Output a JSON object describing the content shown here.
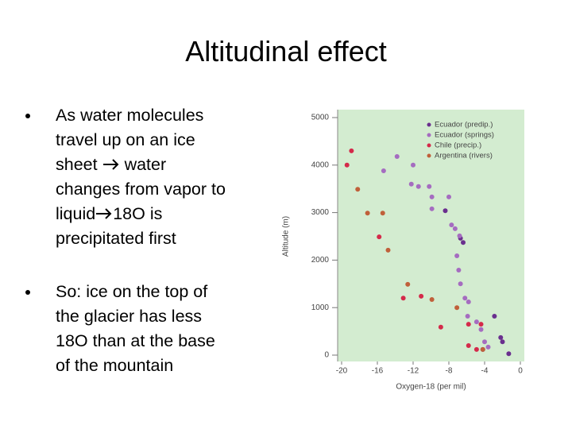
{
  "title": "Altitudinal effect",
  "bullets": [
    [
      "As water molecules",
      "travel up on an ice",
      "sheet",
      "water",
      "changes from vapor to",
      "liquid",
      "18O is",
      "precipitated first"
    ],
    [
      "So: ice on the top of",
      "the glacier has less",
      "18O than at the base",
      "of the mountain"
    ]
  ],
  "chart_data": {
    "type": "scatter",
    "xlabel": "Oxygen-18 (per mil)",
    "ylabel": "Altitude (m)",
    "xlim": [
      -20,
      0
    ],
    "xticks": [
      -20,
      -16,
      -12,
      -8,
      -4,
      0
    ],
    "ylim": [
      0,
      5000
    ],
    "yticks": [
      0,
      1000,
      2000,
      3000,
      4000,
      5000
    ],
    "legend": "top-right",
    "background": "#d3ecd0",
    "series": [
      {
        "name": "Ecuador (predip.)",
        "color": "#6a2f8e",
        "x": [
          -8.4,
          -6.4,
          -6.7,
          -2.9,
          -2.2,
          -2.0,
          -1.3,
          -4.2
        ],
        "values": [
          3040,
          2370,
          2460,
          820,
          370,
          280,
          30,
          120
        ]
      },
      {
        "name": "Ecuador (springs)",
        "color": "#a56cc0",
        "x": [
          -15.3,
          -13.8,
          -12.0,
          -12.2,
          -11.4,
          -10.2,
          -9.9,
          -8.0,
          -9.9,
          -7.7,
          -7.3,
          -6.8,
          -7.1,
          -6.9,
          -6.7,
          -6.2,
          -5.8,
          -5.9,
          -4.9,
          -4.4,
          -4.0,
          -3.6
        ],
        "values": [
          3880,
          4180,
          4000,
          3600,
          3550,
          3550,
          3330,
          3330,
          3080,
          2740,
          2660,
          2510,
          2090,
          1790,
          1500,
          1200,
          1120,
          820,
          700,
          540,
          280,
          170
        ]
      },
      {
        "name": "Chile (precip.)",
        "color": "#d42a4a",
        "x": [
          -18.9,
          -19.4,
          -15.8,
          -13.1,
          -11.1,
          -8.9,
          -5.8,
          -5.8,
          -4.4,
          -4.9
        ],
        "values": [
          4300,
          4000,
          2490,
          1200,
          1240,
          590,
          650,
          200,
          650,
          120
        ]
      },
      {
        "name": "Argentina (rivers)",
        "color": "#c0603a",
        "x": [
          -18.2,
          -17.1,
          -15.4,
          -14.8,
          -12.6,
          -9.9,
          -7.1,
          -4.2
        ],
        "values": [
          3490,
          2990,
          2990,
          2210,
          1490,
          1170,
          1000,
          120
        ]
      }
    ]
  }
}
